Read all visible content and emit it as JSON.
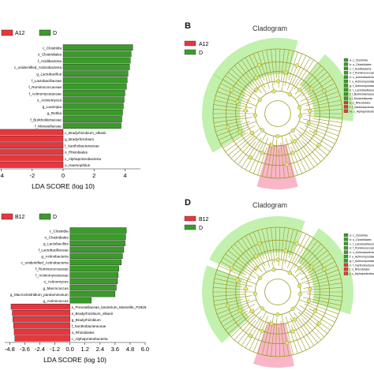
{
  "colors": {
    "group_red": "#e8363c",
    "group_green": "#3b9b2a",
    "clado_line": "#9a9a24",
    "clado_node": "#e3e85e",
    "green_sector": "#8fe36a",
    "pink_sector": "#f47a9c"
  },
  "panel_letters": {
    "b": "B",
    "d": "D"
  },
  "cladogram_titles": {
    "b": "Cladogram",
    "d": "Cladogram"
  },
  "chart_data": [
    {
      "type": "bar",
      "orientation": "horizontal",
      "legend": [
        {
          "label": "A12",
          "color": "#e8363c"
        },
        {
          "label": "D",
          "color": "#3b9b2a"
        }
      ],
      "categories": [
        "c_Clostridia",
        "o_Clostridiales",
        "f_Acidibacteria",
        "c_unidentified_Actinobacteria",
        "g_Lactobacillus",
        "f_Lactobacillaceae",
        "f_Ruminococcaceae",
        "f_Actinomycetaceae",
        "o_Actinomyces",
        "g_Lautropia",
        "g_Rothia",
        "f_Burkholderiaceae",
        "f_Moraxellaceae",
        "c_Bradyrhizobium_elkanii",
        "g_Bradyrhizobium",
        "f_Xanthobacteraceae",
        "o_Rhizobiales",
        "c_Alphaproteobacteria",
        "o_Haemophilus"
      ],
      "values": [
        4.5,
        4.4,
        4.35,
        4.3,
        4.2,
        4.15,
        4.1,
        4.0,
        3.95,
        3.9,
        3.85,
        3.8,
        3.75,
        -4.6,
        -4.55,
        -4.5,
        -4.45,
        -4.4,
        -4.3
      ],
      "xlabel": "LDA SCORE (log 10)",
      "xticks": [
        "-4",
        "-2",
        "0",
        "2",
        "4"
      ],
      "xlim": [
        -5,
        5
      ]
    },
    {
      "type": "bar",
      "orientation": "horizontal",
      "legend": [
        {
          "label": "B12",
          "color": "#e8363c"
        },
        {
          "label": "D",
          "color": "#3b9b2a"
        }
      ],
      "categories": [
        "c_Clostridia",
        "o_Clostridiales",
        "g_Lactobacillus",
        "f_Lactobacillaceae",
        "g_Actinobacteria",
        "c_unidentified_Actinobacteria",
        "f_Ruminococcaceae",
        "f_Actinomycetaceae",
        "o_Actinomyces",
        "g_Macrococcus",
        "g_Macroclostridium_paraluminosum",
        "g_Actinococcus",
        "s_Prevotellaceae_bacterium_Marseille_P2826",
        "s_Bradyrhizobium_elkanii",
        "g_Bradyrhizobium",
        "f_Xanthobacteraceae",
        "o_Rhizobiales",
        "c_Alphaproteobacteria"
      ],
      "values": [
        4.5,
        4.45,
        4.4,
        4.3,
        4.2,
        4.1,
        3.9,
        3.85,
        3.8,
        3.7,
        3.6,
        1.7,
        -4.7,
        -4.6,
        -4.55,
        -4.5,
        -4.45,
        -4.4
      ],
      "xlabel": "LDA SCORE (log 10)",
      "xticks": [
        "-4.8",
        "-3.6",
        "-2.4",
        "-1.2",
        "0.0",
        "1.2",
        "2.4",
        "3.6",
        "4.8",
        "6.0"
      ],
      "xlim": [
        -5.2,
        6.0
      ]
    }
  ],
  "cladograms": [
    {
      "legend": [
        {
          "label": "A12",
          "color": "#e8363c"
        },
        {
          "label": "D",
          "color": "#3b9b2a"
        }
      ],
      "key_labels": [
        "a: c_Clostridia",
        "b: o_Clostridiales",
        "c: f_Acidibacteria",
        "d: f_Ruminococcaceae",
        "e: c_Actinobacteria",
        "f: o_Actinomycetales",
        "g: f_Actinomycetaceae",
        "h: f_Lactobacillaceae",
        "i: f_Burkholderiaceae",
        "j: f_Moraxellaceae",
        "k: o_Rhizobiales",
        "l: f_Xanthobacteraceae",
        "m: c_Alphaproteobacteria"
      ]
    },
    {
      "legend": [
        {
          "label": "B12",
          "color": "#e8363c"
        },
        {
          "label": "D",
          "color": "#3b9b2a"
        }
      ],
      "key_labels": [
        "a: c_Clostridia",
        "b: o_Clostridiales",
        "c: f_Lactobacillaceae",
        "d: f_Ruminococcaceae",
        "e: c_Actinobacteria",
        "f: o_Actinomycetales",
        "g: f_Actinomycetaceae",
        "h: f_Xanthobacteraceae",
        "i: o_Rhizobiales",
        "j: c_Alphaproteobacteria"
      ]
    }
  ]
}
